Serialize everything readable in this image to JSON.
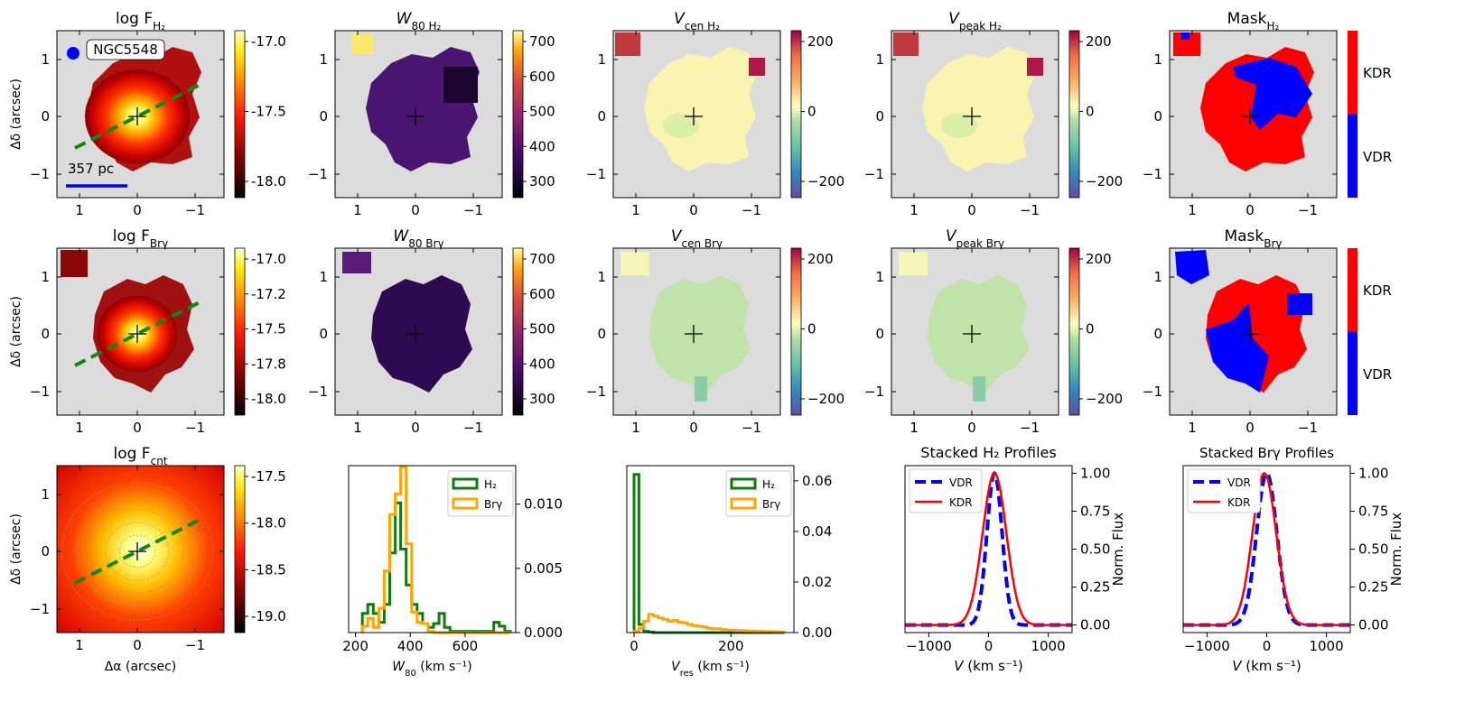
{
  "colors": {
    "map_bg": "#dcdcdc",
    "vdr": "#0000ff",
    "kdr": "#ff0000",
    "h2_hist": "#117a11",
    "brg_hist": "#ffa500",
    "pa_line": "#118811",
    "scalebar": "#0000ee"
  },
  "maps": {
    "xticks": [
      "1",
      "0",
      "−1"
    ],
    "yticks": [
      "1",
      "0",
      "−1"
    ],
    "ylabel": "Δδ (arcsec)",
    "xlabel": "Δα (arcsec)",
    "galaxy": "NGC5548",
    "scalebar_label": "357 pc"
  },
  "titles": {
    "r0": [
      {
        "base": "log F",
        "sub": "H₂",
        "italic": false
      },
      {
        "base": "W",
        "sub": "80 H₂",
        "italic": true
      },
      {
        "base": "V",
        "sub": "cen H₂",
        "italic": true
      },
      {
        "base": "V",
        "sub": "peak H₂",
        "italic": true
      },
      {
        "base": "Mask",
        "sub": "H₂",
        "italic": false
      }
    ],
    "r1": [
      {
        "base": "log F",
        "sub": "Brγ",
        "italic": false
      },
      {
        "base": "W",
        "sub": "80 Brγ",
        "italic": true
      },
      {
        "base": "V",
        "sub": "cen Brγ",
        "italic": true
      },
      {
        "base": "V",
        "sub": "peak Brγ",
        "italic": true
      },
      {
        "base": "Mask",
        "sub": "Brγ",
        "italic": false
      }
    ],
    "r2": [
      {
        "base": "log F",
        "sub": "cnt",
        "italic": false
      },
      {
        "base": "Stacked H₂ Profiles",
        "sub": "",
        "italic": false
      },
      {
        "base": "Stacked Brγ Profiles",
        "sub": "",
        "italic": false
      }
    ]
  },
  "colorbars": {
    "fh2": [
      "-17.0",
      "-17.5",
      "-18.0"
    ],
    "fbrg": [
      "-17.0",
      "-17.2",
      "-17.5",
      "-17.8",
      "-18.0"
    ],
    "fcnt": [
      "-17.5",
      "-18.0",
      "-18.5",
      "-19.0"
    ],
    "w80": [
      "700",
      "600",
      "500",
      "400",
      "300"
    ],
    "vel": [
      "200",
      "0",
      "−200"
    ],
    "mask": [
      "KDR",
      "VDR"
    ]
  },
  "chart_data": [
    {
      "type": "histogram",
      "title": "",
      "xlabel": "W80 (km s⁻¹)",
      "xlim": [
        175,
        785
      ],
      "ylim": [
        0,
        0.013
      ],
      "xticks": [
        "200",
        "400",
        "600"
      ],
      "yticks": [
        "0.010",
        "0.005",
        "0.000"
      ],
      "bin_edges": [
        225,
        245,
        265,
        285,
        305,
        325,
        345,
        365,
        385,
        405,
        425,
        445,
        465,
        485,
        505,
        525,
        545,
        565,
        585,
        605,
        625,
        645,
        665,
        685,
        705,
        725,
        745,
        765
      ],
      "series": [
        {
          "name": "H₂",
          "values": [
            0.0015,
            0.0022,
            0.0015,
            0.0008,
            0.0022,
            0.0062,
            0.0101,
            0.0065,
            0.0037,
            0.0022,
            0.0015,
            0.0007,
            0.0004,
            0.0007,
            0.0015,
            0.0004,
            0.0001,
            0.0001,
            0.0001,
            0.0001,
            0.0001,
            0.0001,
            0.0001,
            0.0001,
            0.0008,
            0.0005,
            0.0001
          ]
        },
        {
          "name": "Brγ",
          "values": [
            0.0005,
            0.0011,
            0.0004,
            0.0019,
            0.0048,
            0.0092,
            0.0108,
            0.0129,
            0.0069,
            0.0016,
            0.0008,
            0.0007,
            0.0001,
            0,
            0,
            0,
            0,
            0,
            0,
            0,
            0,
            0,
            0,
            0,
            0,
            0,
            0
          ]
        }
      ]
    },
    {
      "type": "histogram",
      "title": "",
      "xlabel": "Vres (km s⁻¹)",
      "xlim": [
        -15,
        330
      ],
      "ylim": [
        0,
        0.066
      ],
      "xticks": [
        "0",
        "200"
      ],
      "yticks": [
        "0.06",
        "0.04",
        "0.02",
        "0.00"
      ],
      "bin_edges": [
        0,
        10,
        20,
        30,
        40,
        50,
        60,
        70,
        80,
        90,
        100,
        110,
        120,
        130,
        140,
        150,
        160,
        170,
        180,
        190,
        200,
        210,
        220,
        230,
        240,
        250,
        260,
        270,
        280,
        290,
        300,
        310
      ],
      "series": [
        {
          "name": "H₂",
          "values": [
            0.0625,
            0.0032,
            0.0005,
            0.0002,
            0,
            0,
            0,
            0,
            0,
            0,
            0,
            0,
            0,
            0,
            0,
            0,
            0,
            0,
            0,
            0,
            0,
            0,
            0,
            0,
            0,
            0,
            0,
            0,
            0,
            0,
            0
          ]
        },
        {
          "name": "Brγ",
          "values": [
            0.0005,
            0.0018,
            0.0045,
            0.0072,
            0.0065,
            0.0058,
            0.0052,
            0.0045,
            0.0048,
            0.0042,
            0.0038,
            0.0032,
            0.0028,
            0.0025,
            0.0022,
            0.0018,
            0.0015,
            0.0015,
            0.0012,
            0.001,
            0.001,
            0.0008,
            0.0008,
            0.0006,
            0.0006,
            0.0005,
            0.0005,
            0.0004,
            0.0004,
            0.0003,
            0.0003
          ]
        }
      ]
    },
    {
      "type": "line",
      "title": "Stacked H₂ Profiles",
      "xlabel": "V (km s⁻¹)",
      "ylabel": "Norm. Flux",
      "xlim": [
        -1400,
        1400
      ],
      "ylim": [
        -0.05,
        1.05
      ],
      "xticks": [
        "−1000",
        "0",
        "1000"
      ],
      "yticks": [
        "1.00",
        "0.75",
        "0.50",
        "0.25",
        "0.00"
      ],
      "series": [
        {
          "name": "VDR",
          "type": "gaussian",
          "center": 100,
          "fwhm": 300
        },
        {
          "name": "KDR",
          "type": "gaussian",
          "center": 100,
          "fwhm": 470
        }
      ]
    },
    {
      "type": "line",
      "title": "Stacked Brγ Profiles",
      "xlabel": "V (km s⁻¹)",
      "ylabel": "Norm. Flux",
      "xlim": [
        -1400,
        1400
      ],
      "ylim": [
        -0.05,
        1.05
      ],
      "xticks": [
        "−1000",
        "0",
        "1000"
      ],
      "yticks": [
        "1.00",
        "0.75",
        "0.50",
        "0.25",
        "0.00"
      ],
      "series": [
        {
          "name": "VDR",
          "type": "gaussian",
          "center": 0,
          "fwhm": 400
        },
        {
          "name": "KDR",
          "type": "gaussian",
          "center": -40,
          "fwhm": 470
        }
      ]
    }
  ]
}
